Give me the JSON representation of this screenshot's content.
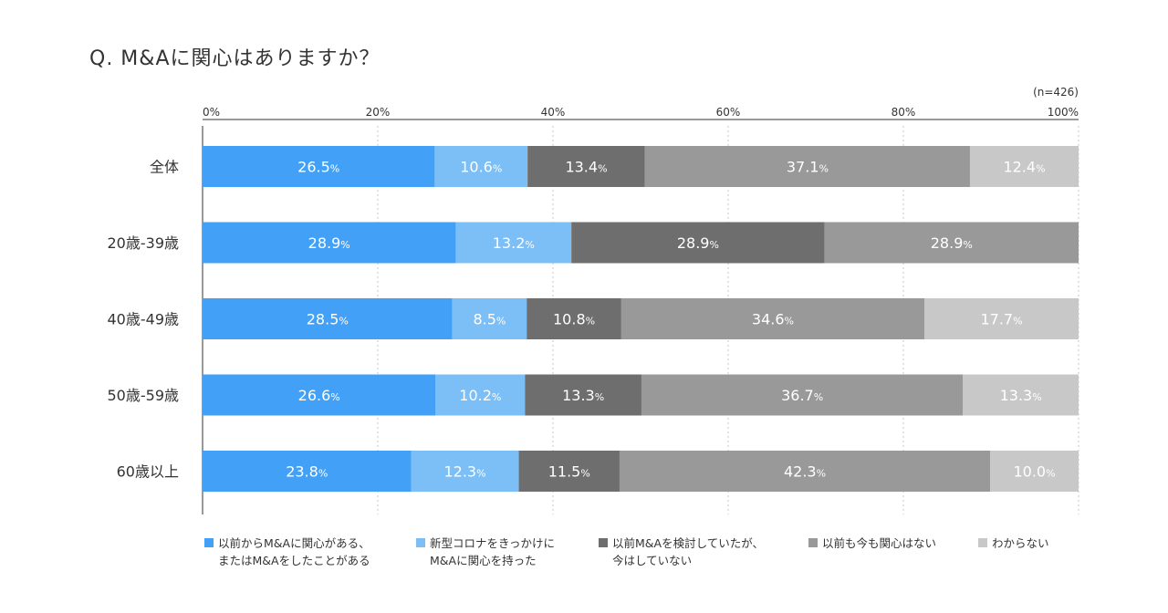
{
  "title": "Q. M&Aに関心はありますか？",
  "note": "(n=426)",
  "chart_data": {
    "type": "bar",
    "orientation": "horizontal",
    "stacked": true,
    "title": "Q. M&Aに関心はありますか？",
    "note": "(n=426)",
    "categories": [
      "全体",
      "20歳-39歳",
      "40歳-49歳",
      "50歳-59歳",
      "60歳以上"
    ],
    "xlim": [
      0,
      100
    ],
    "x_ticks": [
      "0%",
      "20%",
      "40%",
      "60%",
      "80%",
      "100%"
    ],
    "x_tick_values": [
      0,
      20,
      40,
      60,
      80,
      100
    ],
    "grid": "dashed vertical",
    "legend_position": "bottom",
    "series": [
      {
        "name": "以前からM&Aに関心がある、\nまたはM&Aをしたことがある",
        "color": "#42A1F7",
        "values": [
          26.5,
          28.9,
          28.5,
          26.6,
          23.8
        ]
      },
      {
        "name": "新型コロナをきっかけに\nM&Aに関心を持った",
        "color": "#7CBEF6",
        "values": [
          10.6,
          13.2,
          8.5,
          10.2,
          12.3
        ]
      },
      {
        "name": "以前M&Aを検討していたが、\n今はしていない",
        "color": "#6E6E6E",
        "values": [
          13.4,
          28.9,
          10.8,
          13.3,
          11.5
        ]
      },
      {
        "name": "以前も今も関心はない",
        "color": "#999999",
        "values": [
          37.1,
          28.9,
          34.6,
          36.7,
          42.3
        ]
      },
      {
        "name": "わからない",
        "color": "#C8C8C8",
        "values": [
          12.4,
          null,
          17.7,
          13.3,
          10.0
        ]
      }
    ],
    "value_labels": [
      [
        "26.5",
        "10.6",
        "13.4",
        "37.1",
        "12.4"
      ],
      [
        "28.9",
        "13.2",
        "28.9",
        "28.9",
        null
      ],
      [
        "28.5",
        "8.5",
        "10.8",
        "34.6",
        "17.7"
      ],
      [
        "26.6",
        "10.2",
        "13.3",
        "36.7",
        "13.3"
      ],
      [
        "23.8",
        "12.3",
        "11.5",
        "42.3",
        "10.0"
      ]
    ],
    "value_suffix": "%"
  }
}
